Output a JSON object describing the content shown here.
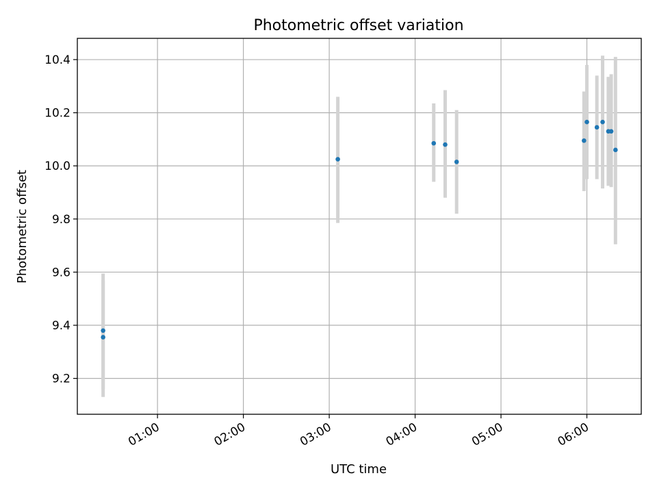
{
  "chart_data": {
    "type": "scatter",
    "title": "Photometric offset variation",
    "xlabel": "UTC time",
    "ylabel": "Photometric offset",
    "x_axis": "time",
    "xlim": [
      "00:04",
      "06:38"
    ],
    "ylim": [
      9.065,
      10.48
    ],
    "xticks": [
      "01:00",
      "02:00",
      "03:00",
      "04:00",
      "05:00",
      "06:00"
    ],
    "yticks": [
      9.2,
      9.4,
      9.6,
      9.8,
      10.0,
      10.2,
      10.4
    ],
    "grid": true,
    "marker_color": "#1f77b4",
    "errorbar_color": "#d3d3d3",
    "series": [
      {
        "points": [
          {
            "x": "00:22",
            "y": 9.38,
            "yerr_low": 9.16,
            "yerr_high": 9.595
          },
          {
            "x": "00:22",
            "y": 9.355,
            "yerr_low": 9.13,
            "yerr_high": 9.57
          },
          {
            "x": "03:06",
            "y": 10.025,
            "yerr_low": 9.785,
            "yerr_high": 10.26
          },
          {
            "x": "04:13",
            "y": 10.085,
            "yerr_low": 9.94,
            "yerr_high": 10.235
          },
          {
            "x": "04:21",
            "y": 10.08,
            "yerr_low": 9.88,
            "yerr_high": 10.285
          },
          {
            "x": "04:29",
            "y": 10.015,
            "yerr_low": 9.82,
            "yerr_high": 10.21
          },
          {
            "x": "05:58",
            "y": 10.095,
            "yerr_low": 9.905,
            "yerr_high": 10.28
          },
          {
            "x": "06:00",
            "y": 10.165,
            "yerr_low": 9.95,
            "yerr_high": 10.38
          },
          {
            "x": "06:07",
            "y": 10.145,
            "yerr_low": 9.95,
            "yerr_high": 10.34
          },
          {
            "x": "06:11",
            "y": 10.165,
            "yerr_low": 9.915,
            "yerr_high": 10.415
          },
          {
            "x": "06:15",
            "y": 10.13,
            "yerr_low": 9.925,
            "yerr_high": 10.335
          },
          {
            "x": "06:17",
            "y": 10.13,
            "yerr_low": 9.92,
            "yerr_high": 10.345
          },
          {
            "x": "06:20",
            "y": 10.06,
            "yerr_low": 9.705,
            "yerr_high": 10.41
          }
        ]
      }
    ]
  }
}
